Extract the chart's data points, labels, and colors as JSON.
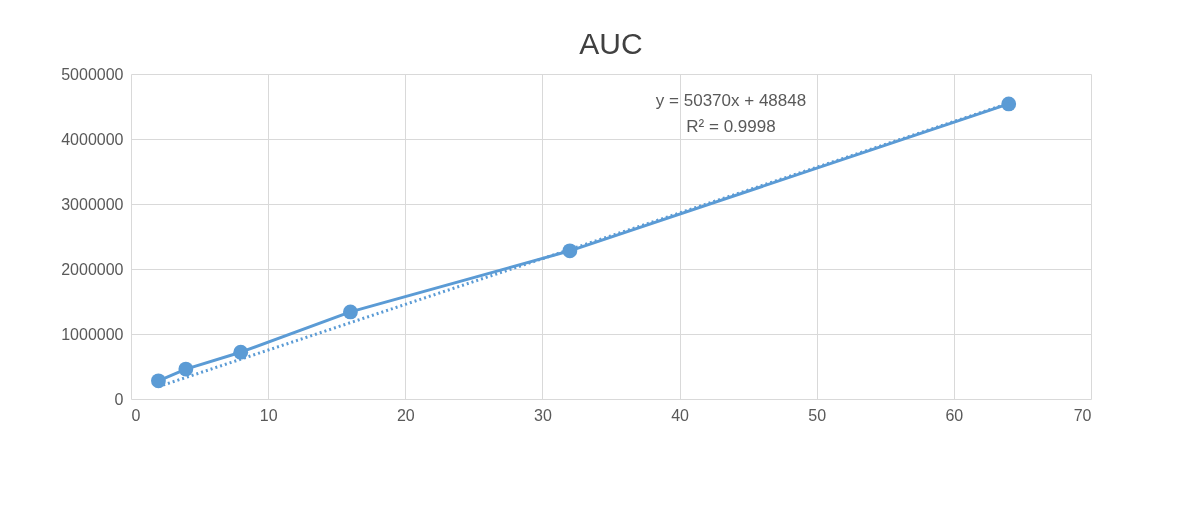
{
  "chart_data": {
    "type": "line",
    "title": "AUC",
    "xlim": [
      0,
      70
    ],
    "xticks": [
      0,
      10,
      20,
      30,
      40,
      50,
      60,
      70
    ],
    "ylim": [
      0,
      5000000
    ],
    "yticks": [
      0,
      1000000,
      2000000,
      3000000,
      4000000,
      5000000
    ],
    "grid": true,
    "series": [
      {
        "color": "#5b9bd5",
        "line_style": "solid",
        "marker": "circle",
        "x": [
          2,
          4,
          8,
          16,
          32,
          64
        ],
        "values": [
          280000,
          460000,
          720000,
          1340000,
          2280000,
          4540000
        ]
      },
      {
        "color": "#5b9bd5",
        "line_style": "dotted",
        "x": [
          2,
          64
        ],
        "values": [
          190000,
          4550000
        ]
      }
    ],
    "annotations": [
      "y = 50370x + 48848",
      "R² = 0.9998"
    ]
  }
}
